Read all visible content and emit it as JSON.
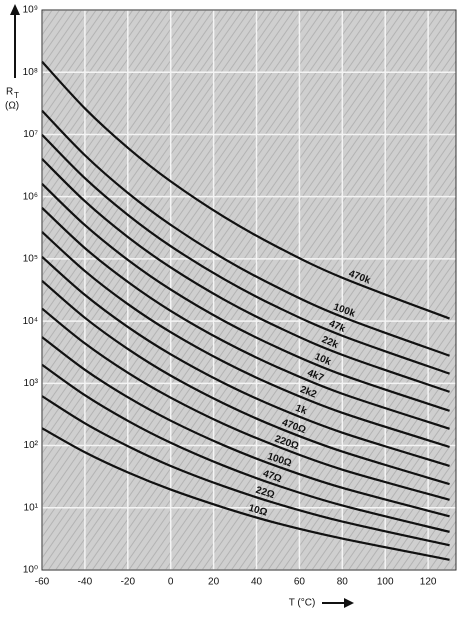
{
  "chart_data": {
    "type": "line",
    "ylabel_main": "R",
    "ylabel_sub": "T",
    "ylabel_unit": "(Ω)",
    "xlabel": "T (°C)",
    "log_y": true,
    "grid": true,
    "xlim": [
      -60,
      133
    ],
    "ylim": [
      1,
      1000000000
    ],
    "xticks": [
      -60,
      -40,
      -20,
      0,
      20,
      40,
      60,
      80,
      100,
      120
    ],
    "yticks": [
      {
        "value": 1,
        "label": "10⁰"
      },
      {
        "value": 10,
        "label": "10¹"
      },
      {
        "value": 100,
        "label": "10²"
      },
      {
        "value": 1000,
        "label": "10³"
      },
      {
        "value": 10000,
        "label": "10⁴"
      },
      {
        "value": 100000,
        "label": "10⁵"
      },
      {
        "value": 1000000,
        "label": "10⁶"
      },
      {
        "value": 10000000,
        "label": "10⁷"
      },
      {
        "value": 100000000,
        "label": "10⁸"
      },
      {
        "value": 1000000000,
        "label": "10⁹"
      }
    ],
    "x": [
      -60,
      -40,
      -20,
      0,
      25,
      50,
      80,
      130
    ],
    "series": [
      {
        "name": "470k",
        "color": "#111111",
        "values": [
          148000000,
          26200000,
          6100000,
          1760000,
          470000,
          154000,
          49700,
          11000
        ]
      },
      {
        "name": "100k",
        "color": "#111111",
        "values": [
          24100000,
          4630000,
          1150000,
          352000,
          100000,
          34500,
          11700,
          2780
        ]
      },
      {
        "name": "47k",
        "color": "#111111",
        "values": [
          9900000,
          1980000,
          510000,
          160000,
          47000,
          16600,
          5820,
          1430
        ]
      },
      {
        "name": "22k",
        "color": "#111111",
        "values": [
          4050000,
          845000,
          225000,
          72800,
          22000,
          8000,
          2870,
          730
        ]
      },
      {
        "name": "10k",
        "color": "#111111",
        "values": [
          1610000,
          349000,
          96400,
          32100,
          10000,
          3730,
          1370,
          362
        ]
      },
      {
        "name": "4k7",
        "color": "#111111",
        "values": [
          663000,
          149000,
          42700,
          14600,
          4700,
          1800,
          680,
          186
        ]
      },
      {
        "name": "2k2",
        "color": "#111111",
        "values": [
          271000,
          63800,
          18800,
          6640,
          2200,
          865,
          336,
          95
        ]
      },
      {
        "name": "1k",
        "color": "#111111",
        "values": [
          108000,
          26400,
          8060,
          2930,
          1000,
          403,
          161,
          47
        ]
      },
      {
        "name": "470Ω",
        "color": "#111111",
        "values": [
          44400,
          11300,
          3570,
          1330,
          470,
          194,
          80,
          24
        ]
      },
      {
        "name": "220Ω",
        "color": "#111111",
        "values": [
          15900,
          4380,
          1480,
          588,
          220,
          96,
          41,
          13.4
        ]
      },
      {
        "name": "100Ω",
        "color": "#111111",
        "values": [
          5530,
          1650,
          598,
          251,
          100,
          45.9,
          20.9,
          7.3
        ]
      },
      {
        "name": "47Ω",
        "color": "#111111",
        "values": [
          1990,
          644,
          250,
          111,
          47,
          22.7,
          10.9,
          4.1
        ]
      },
      {
        "name": "22Ω",
        "color": "#111111",
        "values": [
          623,
          228,
          98,
          47,
          22,
          11.5,
          6.0,
          2.5
        ]
      },
      {
        "name": "10Ω",
        "color": "#111111",
        "values": [
          190,
          78,
          37,
          19.6,
          10,
          5.6,
          3.2,
          1.46
        ]
      }
    ]
  }
}
